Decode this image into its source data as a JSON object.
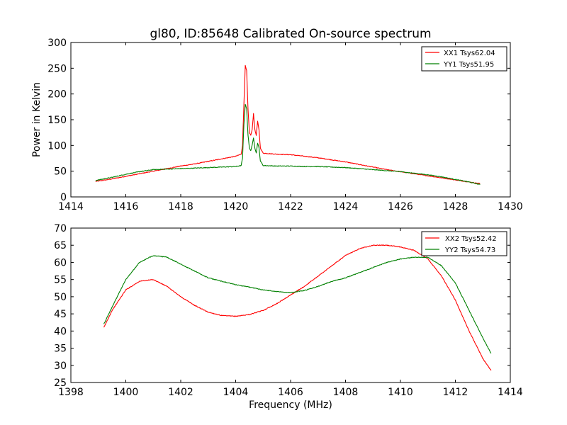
{
  "figure_title": "gl80, ID:85648 Calibrated On-source spectrum",
  "chart_data": [
    {
      "type": "line",
      "title": "gl80, ID:85648 Calibrated On-source spectrum",
      "xlabel": "",
      "ylabel": "Power in Kelvin",
      "xlim": [
        1414,
        1430
      ],
      "ylim": [
        0,
        300
      ],
      "xticks": [
        1414,
        1416,
        1418,
        1420,
        1422,
        1424,
        1426,
        1428,
        1430
      ],
      "yticks": [
        0,
        50,
        100,
        150,
        200,
        250,
        300
      ],
      "grid": false,
      "legend_position": "top-right",
      "series": [
        {
          "name": "XX1 Tsys62.04",
          "color": "#ff0000",
          "points": [
            [
              1414.9,
              30
            ],
            [
              1415.5,
              35
            ],
            [
              1416.0,
              40
            ],
            [
              1416.5,
              45
            ],
            [
              1417.0,
              50
            ],
            [
              1417.5,
              55
            ],
            [
              1418.0,
              60
            ],
            [
              1418.5,
              64
            ],
            [
              1419.0,
              69
            ],
            [
              1419.5,
              74
            ],
            [
              1420.0,
              79
            ],
            [
              1420.2,
              83
            ],
            [
              1420.25,
              100
            ],
            [
              1420.3,
              180
            ],
            [
              1420.35,
              255
            ],
            [
              1420.4,
              245
            ],
            [
              1420.45,
              170
            ],
            [
              1420.5,
              125
            ],
            [
              1420.55,
              120
            ],
            [
              1420.6,
              130
            ],
            [
              1420.65,
              162
            ],
            [
              1420.7,
              130
            ],
            [
              1420.75,
              120
            ],
            [
              1420.8,
              147
            ],
            [
              1420.85,
              130
            ],
            [
              1420.9,
              95
            ],
            [
              1421.0,
              85
            ],
            [
              1421.5,
              83
            ],
            [
              1422.0,
              82
            ],
            [
              1422.5,
              79
            ],
            [
              1423.0,
              76
            ],
            [
              1423.5,
              72
            ],
            [
              1424.0,
              68
            ],
            [
              1424.5,
              63
            ],
            [
              1425.0,
              58
            ],
            [
              1425.5,
              53
            ],
            [
              1426.0,
              49
            ],
            [
              1426.5,
              45
            ],
            [
              1427.0,
              41
            ],
            [
              1427.5,
              37
            ],
            [
              1428.0,
              33
            ],
            [
              1428.5,
              29
            ],
            [
              1428.9,
              26
            ]
          ]
        },
        {
          "name": "YY1 Tsys51.95",
          "color": "#008000",
          "points": [
            [
              1414.9,
              32
            ],
            [
              1415.5,
              38
            ],
            [
              1416.0,
              44
            ],
            [
              1416.5,
              49
            ],
            [
              1417.0,
              53
            ],
            [
              1417.5,
              54
            ],
            [
              1418.0,
              55
            ],
            [
              1418.5,
              56
            ],
            [
              1419.0,
              57
            ],
            [
              1419.5,
              58
            ],
            [
              1420.0,
              59
            ],
            [
              1420.2,
              61
            ],
            [
              1420.25,
              75
            ],
            [
              1420.3,
              140
            ],
            [
              1420.35,
              180
            ],
            [
              1420.4,
              172
            ],
            [
              1420.45,
              120
            ],
            [
              1420.5,
              95
            ],
            [
              1420.55,
              90
            ],
            [
              1420.6,
              100
            ],
            [
              1420.65,
              115
            ],
            [
              1420.7,
              95
            ],
            [
              1420.75,
              85
            ],
            [
              1420.8,
              105
            ],
            [
              1420.85,
              95
            ],
            [
              1420.9,
              70
            ],
            [
              1421.0,
              61
            ],
            [
              1421.5,
              60
            ],
            [
              1422.0,
              60
            ],
            [
              1422.5,
              59
            ],
            [
              1423.0,
              59
            ],
            [
              1423.5,
              58
            ],
            [
              1424.0,
              57
            ],
            [
              1424.5,
              55
            ],
            [
              1425.0,
              53
            ],
            [
              1425.5,
              51
            ],
            [
              1426.0,
              49
            ],
            [
              1426.5,
              46
            ],
            [
              1427.0,
              43
            ],
            [
              1427.5,
              39
            ],
            [
              1428.0,
              34
            ],
            [
              1428.5,
              29
            ],
            [
              1428.9,
              24
            ]
          ]
        }
      ]
    },
    {
      "type": "line",
      "title": "",
      "xlabel": "Frequency (MHz)",
      "ylabel": "",
      "xlim": [
        1398,
        1414
      ],
      "ylim": [
        25,
        70
      ],
      "xticks": [
        1398,
        1400,
        1402,
        1404,
        1406,
        1408,
        1410,
        1412,
        1414
      ],
      "yticks": [
        25,
        30,
        35,
        40,
        45,
        50,
        55,
        60,
        65,
        70
      ],
      "grid": false,
      "legend_position": "top-right",
      "series": [
        {
          "name": "XX2 Tsys52.42",
          "color": "#ff0000",
          "points": [
            [
              1399.2,
              41
            ],
            [
              1399.5,
              46
            ],
            [
              1400.0,
              52
            ],
            [
              1400.5,
              54.5
            ],
            [
              1401.0,
              55
            ],
            [
              1401.5,
              53
            ],
            [
              1402.0,
              50
            ],
            [
              1402.5,
              47.5
            ],
            [
              1403.0,
              45.5
            ],
            [
              1403.5,
              44.5
            ],
            [
              1404.0,
              44.3
            ],
            [
              1404.5,
              44.8
            ],
            [
              1405.0,
              46
            ],
            [
              1405.5,
              48
            ],
            [
              1406.0,
              50.5
            ],
            [
              1406.5,
              53
            ],
            [
              1407.0,
              56
            ],
            [
              1407.5,
              59
            ],
            [
              1408.0,
              62
            ],
            [
              1408.5,
              64
            ],
            [
              1409.0,
              65
            ],
            [
              1409.5,
              65
            ],
            [
              1410.0,
              64.5
            ],
            [
              1410.5,
              63.5
            ],
            [
              1411.0,
              61
            ],
            [
              1411.5,
              56
            ],
            [
              1412.0,
              49
            ],
            [
              1412.5,
              40
            ],
            [
              1413.0,
              32
            ],
            [
              1413.3,
              28.5
            ]
          ]
        },
        {
          "name": "YY2 Tsys54.73",
          "color": "#008000",
          "points": [
            [
              1399.2,
              42
            ],
            [
              1399.5,
              47
            ],
            [
              1400.0,
              55
            ],
            [
              1400.5,
              60
            ],
            [
              1401.0,
              62
            ],
            [
              1401.5,
              61.5
            ],
            [
              1402.0,
              59.5
            ],
            [
              1402.5,
              57.5
            ],
            [
              1403.0,
              55.5
            ],
            [
              1403.5,
              54.5
            ],
            [
              1404.0,
              53.5
            ],
            [
              1404.5,
              52.8
            ],
            [
              1405.0,
              52
            ],
            [
              1405.5,
              51.5
            ],
            [
              1406.0,
              51.2
            ],
            [
              1406.5,
              51.8
            ],
            [
              1407.0,
              53
            ],
            [
              1407.5,
              54.5
            ],
            [
              1408.0,
              55.5
            ],
            [
              1408.5,
              57
            ],
            [
              1409.0,
              58.5
            ],
            [
              1409.5,
              60
            ],
            [
              1410.0,
              61
            ],
            [
              1410.5,
              61.5
            ],
            [
              1411.0,
              61.5
            ],
            [
              1411.5,
              59
            ],
            [
              1412.0,
              54
            ],
            [
              1412.5,
              46
            ],
            [
              1413.0,
              38
            ],
            [
              1413.3,
              33.5
            ]
          ]
        }
      ]
    }
  ]
}
